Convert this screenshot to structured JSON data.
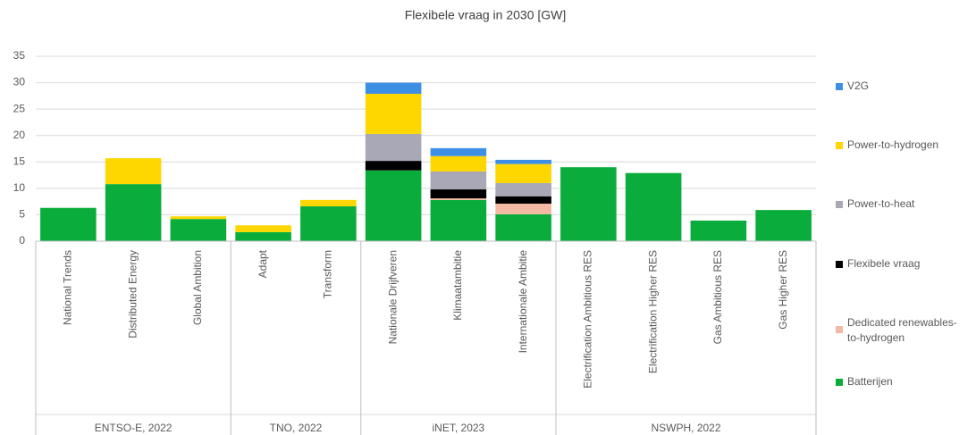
{
  "chart_data": {
    "type": "stacked_bar",
    "title": "Flexibele vraag in 2030 [GW]",
    "categories": [
      "National Trends",
      "Distributed Energy",
      "Global Ambition",
      "Adapt",
      "Transform",
      "Nationale Drijfveren",
      "Klimaatambitie",
      "Internationale Ambitie",
      "Electrification Ambitious RES",
      "Electrification Higher RES",
      "Gas Ambitious RES",
      "Gas Higher RES"
    ],
    "groups": [
      {
        "name": "ENTSO-E, 2022",
        "size": 3
      },
      {
        "name": "TNO, 2022",
        "size": 2
      },
      {
        "name": "iNET, 2023",
        "size": 3
      },
      {
        "name": "NSWPH, 2022",
        "size": 4
      }
    ],
    "series": [
      {
        "name": "Batterijen",
        "color": "#0aad3c",
        "values": [
          6.3,
          10.8,
          4.2,
          1.7,
          6.6,
          13.4,
          7.8,
          5.1,
          14.0,
          12.9,
          3.9,
          5.9
        ]
      },
      {
        "name": "Dedicated renewables-to-hydrogen",
        "color": "#f4b9a2",
        "values": [
          0,
          0,
          0,
          0,
          0,
          0,
          0.3,
          2.0,
          0,
          0,
          0,
          0
        ]
      },
      {
        "name": "Flexibele vraag",
        "color": "#000000",
        "values": [
          0,
          0,
          0,
          0,
          0,
          1.8,
          1.7,
          1.4,
          0,
          0,
          0,
          0
        ]
      },
      {
        "name": "Power-to-heat",
        "color": "#a8a8b6",
        "values": [
          0,
          0,
          0,
          0,
          0,
          5.1,
          3.4,
          2.5,
          0,
          0,
          0,
          0
        ]
      },
      {
        "name": "Power-to-hydrogen",
        "color": "#ffd700",
        "values": [
          0,
          4.9,
          0.5,
          1.3,
          1.2,
          7.6,
          2.9,
          3.6,
          0,
          0,
          0,
          0
        ]
      },
      {
        "name": "V2G",
        "color": "#3d8fe6",
        "values": [
          0,
          0,
          0,
          0,
          0,
          2.1,
          1.5,
          0.8,
          0,
          0,
          0,
          0
        ]
      }
    ],
    "ylim": [
      0,
      35
    ],
    "yticks": [
      0,
      5,
      10,
      15,
      20,
      25,
      30,
      35
    ],
    "grid": true,
    "legend": "right"
  }
}
